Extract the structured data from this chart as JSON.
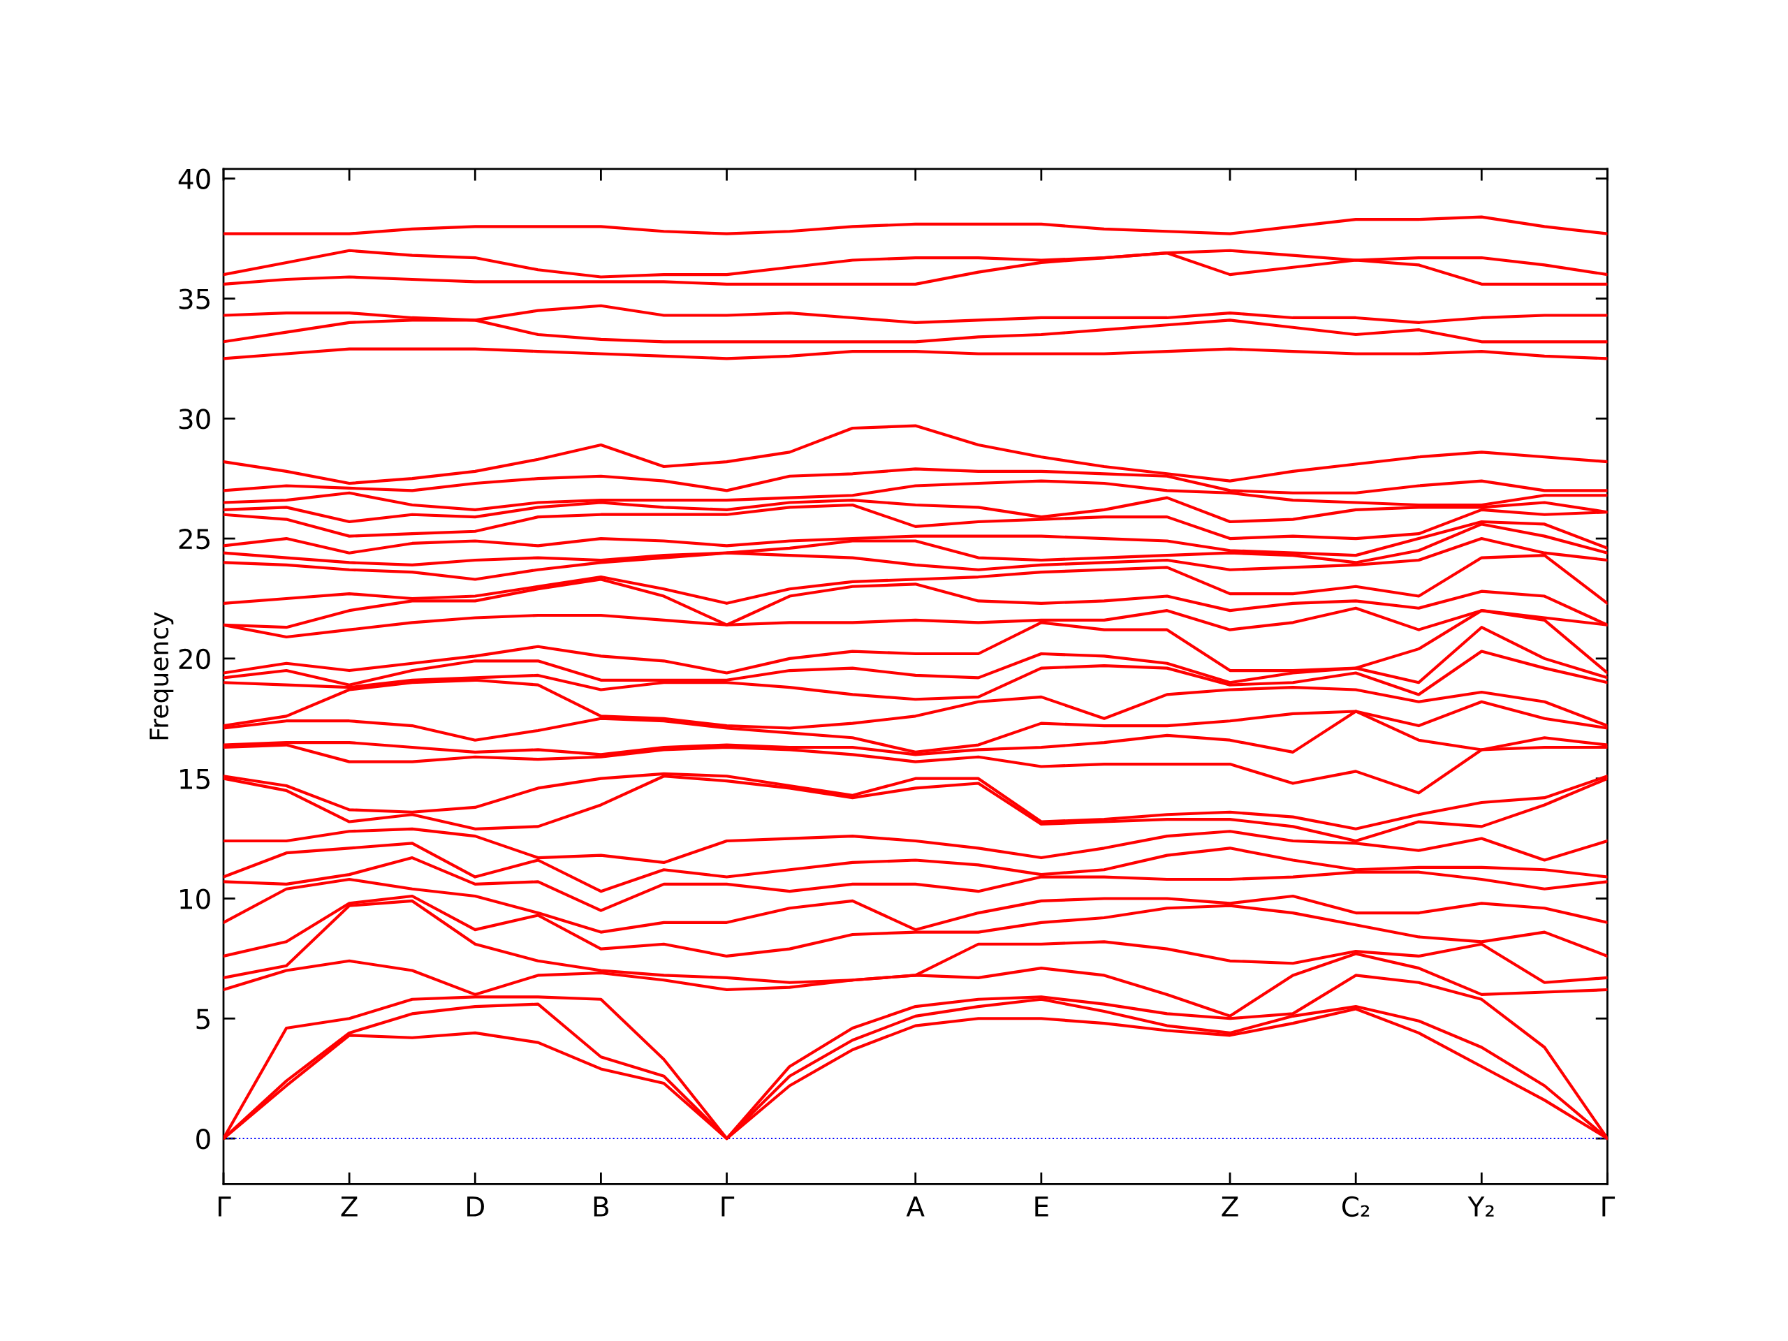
{
  "chart_data": {
    "type": "line",
    "ylabel": "Frequency",
    "color": "#ff0000",
    "line_style": "solid",
    "marker": "none",
    "grid": false,
    "categories": [
      "Γ",
      null,
      "Z",
      null,
      "D",
      null,
      "B",
      null,
      "Γ",
      null,
      null,
      "A",
      null,
      "E",
      null,
      null,
      "Z",
      null,
      "C₂",
      null,
      "Y₂",
      null,
      "Γ"
    ],
    "ylim": [
      -1.9,
      40.4
    ],
    "yticks": [
      0,
      5,
      10,
      15,
      20,
      25,
      30,
      35,
      40
    ],
    "ref_lines": [
      {
        "axis": "y",
        "value": 0,
        "color": "#0000ff",
        "line_style": "dotted"
      }
    ],
    "series": [
      {
        "values": [
          0,
          2.2,
          4.3,
          4.2,
          4.4,
          4.0,
          2.9,
          2.3,
          0,
          2.2,
          3.7,
          4.7,
          5.0,
          5.0,
          4.8,
          4.5,
          4.3,
          4.8,
          5.4,
          4.4,
          3.0,
          1.6,
          0
        ]
      },
      {
        "values": [
          0,
          2.4,
          4.4,
          5.2,
          5.5,
          5.6,
          3.4,
          2.6,
          0,
          2.6,
          4.1,
          5.1,
          5.5,
          5.8,
          5.3,
          4.7,
          4.4,
          5.1,
          5.5,
          4.9,
          3.8,
          2.2,
          0
        ]
      },
      {
        "values": [
          0,
          4.6,
          5.0,
          5.8,
          5.9,
          5.9,
          5.8,
          3.3,
          0,
          3.0,
          4.6,
          5.5,
          5.8,
          5.9,
          5.6,
          5.2,
          5.0,
          5.2,
          6.8,
          6.5,
          5.8,
          3.8,
          0
        ]
      },
      {
        "values": [
          6.2,
          7.0,
          7.4,
          7.0,
          6.0,
          6.8,
          6.9,
          6.6,
          6.2,
          6.3,
          6.6,
          6.8,
          6.7,
          7.1,
          6.8,
          6.0,
          5.1,
          6.8,
          7.7,
          7.1,
          6.0,
          6.1,
          6.2
        ]
      },
      {
        "values": [
          6.7,
          7.2,
          9.7,
          9.9,
          8.1,
          7.4,
          7.0,
          6.8,
          6.7,
          6.5,
          6.6,
          6.8,
          8.1,
          8.1,
          8.2,
          7.9,
          7.4,
          7.3,
          7.8,
          7.6,
          8.1,
          6.5,
          6.7
        ]
      },
      {
        "values": [
          7.6,
          8.2,
          9.8,
          10.1,
          8.7,
          9.3,
          7.9,
          8.1,
          7.6,
          7.9,
          8.5,
          8.6,
          8.6,
          9.0,
          9.2,
          9.6,
          9.7,
          9.4,
          8.9,
          8.4,
          8.2,
          8.6,
          7.6
        ]
      },
      {
        "values": [
          9.0,
          10.4,
          10.8,
          10.4,
          10.1,
          9.4,
          8.6,
          9.0,
          9.0,
          9.6,
          9.9,
          8.7,
          9.4,
          9.9,
          10.0,
          10.0,
          9.8,
          10.1,
          9.4,
          9.4,
          9.8,
          9.6,
          9.0
        ]
      },
      {
        "values": [
          10.7,
          10.6,
          11.0,
          11.7,
          10.6,
          10.7,
          9.5,
          10.6,
          10.6,
          10.3,
          10.6,
          10.6,
          10.3,
          10.9,
          10.9,
          10.8,
          10.8,
          10.9,
          11.1,
          11.1,
          10.8,
          10.4,
          10.7
        ]
      },
      {
        "values": [
          10.9,
          11.9,
          12.1,
          12.3,
          10.9,
          11.6,
          10.3,
          11.2,
          10.9,
          11.2,
          11.5,
          11.6,
          11.4,
          11.0,
          11.2,
          11.8,
          12.1,
          11.6,
          11.2,
          11.3,
          11.3,
          11.2,
          10.9
        ]
      },
      {
        "values": [
          12.4,
          12.4,
          12.8,
          12.9,
          12.6,
          11.7,
          11.8,
          11.5,
          12.4,
          12.5,
          12.6,
          12.4,
          12.1,
          11.7,
          12.1,
          12.6,
          12.8,
          12.4,
          12.3,
          12.0,
          12.5,
          11.6,
          12.4
        ]
      },
      {
        "values": [
          15.0,
          14.5,
          13.2,
          13.5,
          12.9,
          13.0,
          13.9,
          15.1,
          14.9,
          14.6,
          14.2,
          14.6,
          14.8,
          13.1,
          13.2,
          13.3,
          13.3,
          13.0,
          12.4,
          13.2,
          13.0,
          13.9,
          15.0
        ]
      },
      {
        "values": [
          15.1,
          14.7,
          13.7,
          13.6,
          13.8,
          14.6,
          15.0,
          15.2,
          15.1,
          14.7,
          14.3,
          15.0,
          15.0,
          13.2,
          13.3,
          13.5,
          13.6,
          13.4,
          12.9,
          13.5,
          14.0,
          14.2,
          15.1
        ]
      },
      {
        "values": [
          16.3,
          16.4,
          15.7,
          15.7,
          15.9,
          15.8,
          15.9,
          16.2,
          16.3,
          16.2,
          16.0,
          15.7,
          15.9,
          15.5,
          15.6,
          15.6,
          15.6,
          14.8,
          15.3,
          14.4,
          16.2,
          16.3,
          16.3
        ]
      },
      {
        "values": [
          16.4,
          16.5,
          16.5,
          16.3,
          16.1,
          16.2,
          16.0,
          16.3,
          16.4,
          16.3,
          16.3,
          16.0,
          16.2,
          16.3,
          16.5,
          16.8,
          16.6,
          16.1,
          17.8,
          16.6,
          16.2,
          16.7,
          16.4
        ]
      },
      {
        "values": [
          17.1,
          17.4,
          17.4,
          17.2,
          16.6,
          17.0,
          17.5,
          17.4,
          17.1,
          16.9,
          16.7,
          16.1,
          16.4,
          17.3,
          17.2,
          17.2,
          17.4,
          17.7,
          17.8,
          17.2,
          18.2,
          17.5,
          17.1
        ]
      },
      {
        "values": [
          17.2,
          17.6,
          18.7,
          19.0,
          19.1,
          18.9,
          17.6,
          17.5,
          17.2,
          17.1,
          17.3,
          17.6,
          18.2,
          18.4,
          17.5,
          18.5,
          18.7,
          18.8,
          18.7,
          18.2,
          18.6,
          18.2,
          17.2
        ]
      },
      {
        "values": [
          19.0,
          18.9,
          18.8,
          19.1,
          19.2,
          19.3,
          18.7,
          19.0,
          19.0,
          18.8,
          18.5,
          18.3,
          18.4,
          19.6,
          19.7,
          19.6,
          18.9,
          19.0,
          19.4,
          18.5,
          20.3,
          19.6,
          19.0
        ]
      },
      {
        "values": [
          19.2,
          19.5,
          18.9,
          19.5,
          19.9,
          19.9,
          19.1,
          19.1,
          19.1,
          19.5,
          19.6,
          19.3,
          19.2,
          20.2,
          20.1,
          19.8,
          19.0,
          19.4,
          19.6,
          19.0,
          21.3,
          20.0,
          19.2
        ]
      },
      {
        "values": [
          19.4,
          19.8,
          19.5,
          19.8,
          20.1,
          20.5,
          20.1,
          19.9,
          19.4,
          20.0,
          20.3,
          20.2,
          20.2,
          21.5,
          21.2,
          21.2,
          19.5,
          19.5,
          19.6,
          20.4,
          22.0,
          21.6,
          19.4
        ]
      },
      {
        "values": [
          21.4,
          20.9,
          21.2,
          21.5,
          21.7,
          21.8,
          21.8,
          21.6,
          21.4,
          21.5,
          21.5,
          21.6,
          21.5,
          21.6,
          21.6,
          22.0,
          21.2,
          21.5,
          22.1,
          21.2,
          22.0,
          21.7,
          21.4
        ]
      },
      {
        "values": [
          21.4,
          21.3,
          22.0,
          22.4,
          22.4,
          22.9,
          23.3,
          22.6,
          21.4,
          22.6,
          23.0,
          23.1,
          22.4,
          22.3,
          22.4,
          22.6,
          22.0,
          22.3,
          22.4,
          22.1,
          22.8,
          22.6,
          21.4
        ]
      },
      {
        "values": [
          22.3,
          22.5,
          22.7,
          22.5,
          22.6,
          23.0,
          23.4,
          22.9,
          22.3,
          22.9,
          23.2,
          23.3,
          23.4,
          23.6,
          23.7,
          23.8,
          22.7,
          22.7,
          23.0,
          22.6,
          24.2,
          24.3,
          22.3
        ]
      },
      {
        "values": [
          24.0,
          23.9,
          23.7,
          23.6,
          23.3,
          23.7,
          24.0,
          24.2,
          24.4,
          24.3,
          24.2,
          23.9,
          23.7,
          23.9,
          24.0,
          24.1,
          23.7,
          23.8,
          23.9,
          24.1,
          25.0,
          24.4,
          24.1
        ]
      },
      {
        "values": [
          24.4,
          24.2,
          24.0,
          23.9,
          24.1,
          24.2,
          24.1,
          24.3,
          24.4,
          24.6,
          24.9,
          24.9,
          24.2,
          24.1,
          24.2,
          24.3,
          24.4,
          24.3,
          24.0,
          24.5,
          25.6,
          25.1,
          24.4
        ]
      },
      {
        "values": [
          24.7,
          25.0,
          24.4,
          24.8,
          24.9,
          24.7,
          25.0,
          24.9,
          24.7,
          24.9,
          25.0,
          25.1,
          25.1,
          25.1,
          25.0,
          24.9,
          24.5,
          24.4,
          24.3,
          25.0,
          25.7,
          25.6,
          24.6
        ]
      },
      {
        "values": [
          26.0,
          25.8,
          25.1,
          25.2,
          25.3,
          25.9,
          26.0,
          26.0,
          26.0,
          26.3,
          26.4,
          25.5,
          25.7,
          25.8,
          25.9,
          25.9,
          25.0,
          25.1,
          25.0,
          25.2,
          26.2,
          26.0,
          26.1
        ]
      },
      {
        "values": [
          26.2,
          26.3,
          25.7,
          26.0,
          25.9,
          26.3,
          26.5,
          26.3,
          26.2,
          26.5,
          26.6,
          26.4,
          26.3,
          25.9,
          26.2,
          26.7,
          25.7,
          25.8,
          26.2,
          26.3,
          26.3,
          26.5,
          26.1
        ]
      },
      {
        "values": [
          26.5,
          26.6,
          26.9,
          26.4,
          26.2,
          26.5,
          26.6,
          26.6,
          26.6,
          26.7,
          26.8,
          27.2,
          27.3,
          27.4,
          27.3,
          27.0,
          26.9,
          26.6,
          26.5,
          26.4,
          26.4,
          26.8,
          26.8
        ]
      },
      {
        "values": [
          27.0,
          27.2,
          27.1,
          27.0,
          27.3,
          27.5,
          27.6,
          27.4,
          27.0,
          27.6,
          27.7,
          27.9,
          27.8,
          27.8,
          27.7,
          27.6,
          27.0,
          26.9,
          26.9,
          27.2,
          27.4,
          27.0,
          27.0
        ]
      },
      {
        "values": [
          28.2,
          27.8,
          27.3,
          27.5,
          27.8,
          28.3,
          28.9,
          28.0,
          28.2,
          28.6,
          29.6,
          29.7,
          28.9,
          28.4,
          28.0,
          27.7,
          27.4,
          27.8,
          28.1,
          28.4,
          28.6,
          28.4,
          28.2
        ]
      },
      {
        "values": [
          32.5,
          32.7,
          32.9,
          32.9,
          32.9,
          32.8,
          32.7,
          32.6,
          32.5,
          32.6,
          32.8,
          32.8,
          32.7,
          32.7,
          32.7,
          32.8,
          32.9,
          32.8,
          32.7,
          32.7,
          32.8,
          32.6,
          32.5
        ]
      },
      {
        "values": [
          33.2,
          33.6,
          34.0,
          34.1,
          34.1,
          33.5,
          33.3,
          33.2,
          33.2,
          33.2,
          33.2,
          33.2,
          33.4,
          33.5,
          33.7,
          33.9,
          34.1,
          33.8,
          33.5,
          33.7,
          33.2,
          33.2,
          33.2
        ]
      },
      {
        "values": [
          34.3,
          34.4,
          34.4,
          34.2,
          34.1,
          34.5,
          34.7,
          34.3,
          34.3,
          34.4,
          34.2,
          34.0,
          34.1,
          34.2,
          34.2,
          34.2,
          34.4,
          34.2,
          34.2,
          34.0,
          34.2,
          34.3,
          34.3
        ]
      },
      {
        "values": [
          35.6,
          35.8,
          35.9,
          35.8,
          35.7,
          35.7,
          35.7,
          35.7,
          35.6,
          35.6,
          35.6,
          35.6,
          36.1,
          36.5,
          36.7,
          36.9,
          36.0,
          36.3,
          36.6,
          36.4,
          35.6,
          35.6,
          35.6
        ]
      },
      {
        "values": [
          36.0,
          36.5,
          37.0,
          36.8,
          36.7,
          36.2,
          35.9,
          36.0,
          36.0,
          36.3,
          36.6,
          36.7,
          36.7,
          36.6,
          36.7,
          36.9,
          37.0,
          36.8,
          36.6,
          36.7,
          36.7,
          36.4,
          36.0
        ]
      },
      {
        "values": [
          37.7,
          37.7,
          37.7,
          37.9,
          38.0,
          38.0,
          38.0,
          37.8,
          37.7,
          37.8,
          38.0,
          38.1,
          38.1,
          38.1,
          37.9,
          37.8,
          37.7,
          38.0,
          38.3,
          38.3,
          38.4,
          38.0,
          37.7
        ]
      }
    ]
  }
}
